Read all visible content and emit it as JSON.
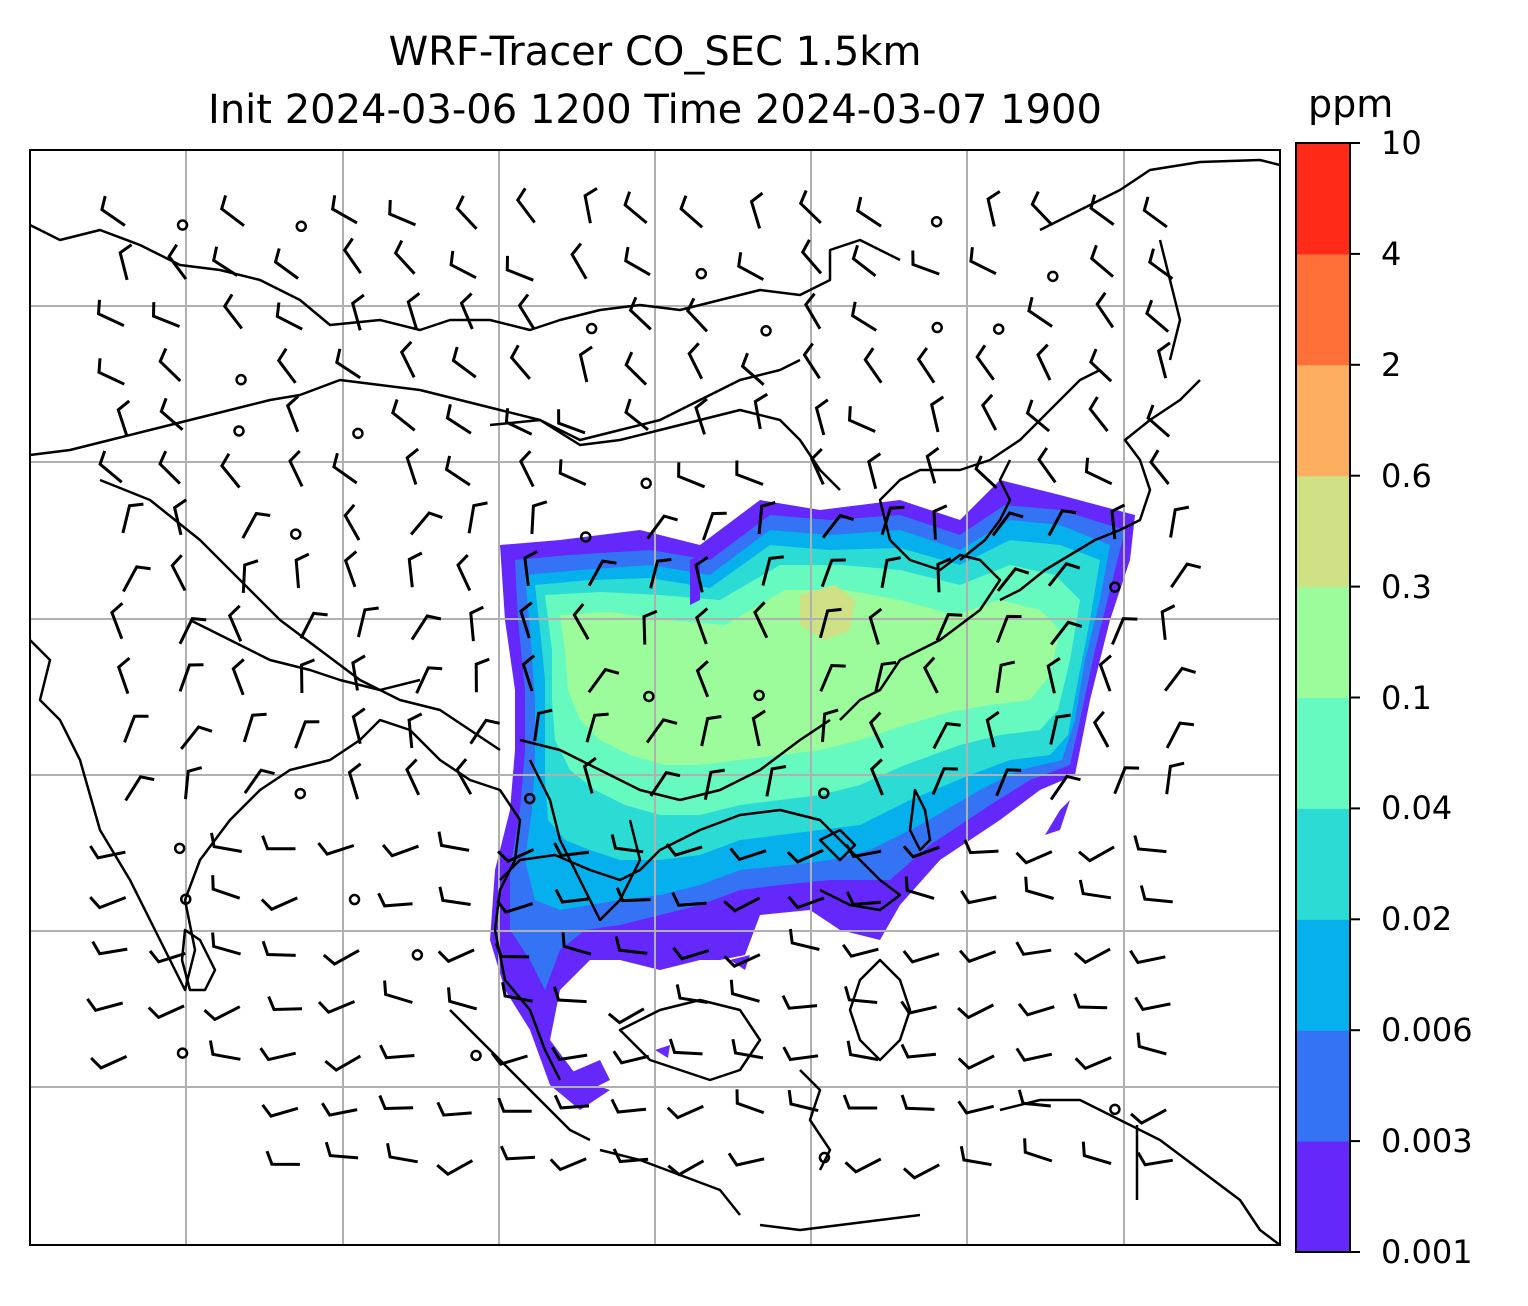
{
  "title_line1": "WRF-Tracer CO_SEC 1.5km",
  "title_line2": "Init 2024-03-06 1200 Time 2024-03-07 1900",
  "colorbar": {
    "units": "ppm",
    "ticks": [
      "0.001",
      "0.003",
      "0.006",
      "0.02",
      "0.04",
      "0.1",
      "0.3",
      "0.6",
      "2",
      "4",
      "10"
    ],
    "colors": [
      "#6428fa",
      "#3474f4",
      "#05b0ec",
      "#2cdcd4",
      "#67fac0",
      "#9cfb9a",
      "#d0e084",
      "#fdae60",
      "#ff7038",
      "#ff2b18"
    ]
  },
  "colors": {
    "land_outline": "#000000",
    "gridline": "#b0b0b0",
    "wind_barb": "#000000"
  },
  "layers": [
    "coastline",
    "gridlines",
    "CO tracer field",
    "wind barbs"
  ]
}
